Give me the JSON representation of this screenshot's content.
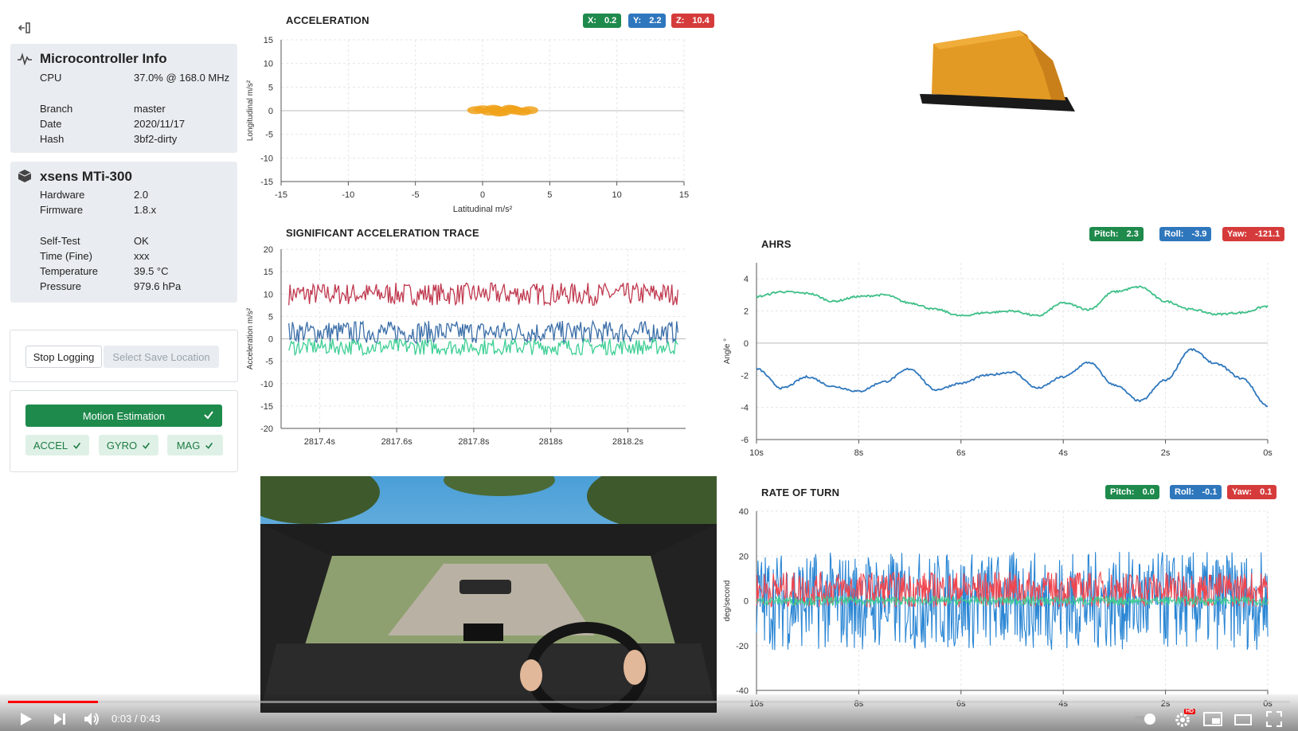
{
  "sidebar": {
    "micro": {
      "title": "Microcontroller Info",
      "rows": [
        {
          "k": "CPU",
          "v": "37.0% @ 168.0 MHz"
        },
        {
          "k": "Branch",
          "v": "master"
        },
        {
          "k": "Date",
          "v": "2020/11/17"
        },
        {
          "k": "Hash",
          "v": "3bf2-dirty"
        }
      ]
    },
    "sensor": {
      "title": "xsens MTi-300",
      "rows": [
        {
          "k": "Hardware",
          "v": "2.0"
        },
        {
          "k": "Firmware",
          "v": "1.8.x"
        },
        {
          "k": "Self-Test",
          "v": "OK"
        },
        {
          "k": "Time (Fine)",
          "v": "xxx"
        },
        {
          "k": "Temperature",
          "v": "39.5 °C"
        },
        {
          "k": "Pressure",
          "v": "979.6 hPa"
        }
      ]
    },
    "logging": {
      "stop_label": "Stop Logging",
      "save_label": "Select Save Location"
    },
    "motion": {
      "label": "Motion Estimation",
      "chips": [
        "ACCEL",
        "GYRO",
        "MAG"
      ]
    }
  },
  "acceleration": {
    "title": "ACCELERATION",
    "badges": [
      {
        "label": "X:",
        "value": "0.2",
        "color": "#1e8a4c"
      },
      {
        "label": "Y:",
        "value": "2.2",
        "color": "#2f77bd"
      },
      {
        "label": "Z:",
        "value": "10.4",
        "color": "#d63b3b"
      }
    ]
  },
  "trace": {
    "title": "SIGNIFICANT ACCELERATION TRACE"
  },
  "ahrs": {
    "title": "AHRS",
    "badges": [
      {
        "label": "Pitch:",
        "value": "2.3",
        "color": "#1e8a4c"
      },
      {
        "label": "Roll:",
        "value": "-3.9",
        "color": "#2f77bd"
      },
      {
        "label": "Yaw:",
        "value": "-121.1",
        "color": "#d63b3b"
      }
    ]
  },
  "rate": {
    "title": "RATE OF TURN",
    "badges": [
      {
        "label": "Pitch:",
        "value": "0.0",
        "color": "#1e8a4c"
      },
      {
        "label": "Roll:",
        "value": "-0.1",
        "color": "#2f77bd"
      },
      {
        "label": "Yaw:",
        "value": "0.1",
        "color": "#d63b3b"
      }
    ]
  },
  "player": {
    "time": "0:03 / 0:43",
    "progress": 0.07,
    "hd": "HD"
  },
  "chart_data": [
    {
      "type": "scatter",
      "title": "ACCELERATION",
      "xlabel": "Latitudinal m/s²",
      "ylabel": "Longitudinal m/s²",
      "xlim": [
        -15,
        15
      ],
      "ylim": [
        -15,
        15
      ],
      "xticks": [
        "-15",
        "-10",
        "-5",
        "0",
        "5",
        "10",
        "15"
      ],
      "yticks": [
        "15",
        "10",
        "5",
        "0",
        "-5",
        "-10",
        "-15"
      ],
      "points": [
        [
          -0.5,
          0.1
        ],
        [
          0,
          0.3
        ],
        [
          0.5,
          -0.2
        ],
        [
          1,
          0.2
        ],
        [
          1.5,
          -0.3
        ],
        [
          2,
          0.4
        ],
        [
          2.5,
          0.0
        ],
        [
          3,
          -0.2
        ],
        [
          3.5,
          0.1
        ],
        [
          1.2,
          -0.4
        ],
        [
          2.2,
          0.3
        ],
        [
          0.8,
          0.4
        ]
      ],
      "color": "#f0a21a"
    },
    {
      "type": "line",
      "title": "SIGNIFICANT ACCELERATION TRACE",
      "ylabel": "Acceleration m/s²",
      "xlim": [
        2817.3,
        2818.35
      ],
      "ylim": [
        -20,
        20
      ],
      "xticks": [
        {
          "v": 2817.4,
          "label": "2817.4s"
        },
        {
          "v": 2817.6,
          "label": "2817.6s"
        },
        {
          "v": 2817.8,
          "label": "2817.8s"
        },
        {
          "v": 2818.0,
          "label": "2818s"
        },
        {
          "v": 2818.2,
          "label": "2818.2s"
        }
      ],
      "yticks": [
        20,
        15,
        10,
        5,
        0,
        -5,
        -10,
        -15,
        -20
      ],
      "series": [
        {
          "color": "#c0394f",
          "mean": 10,
          "amp": 2.5
        },
        {
          "color": "#3c6fa8",
          "mean": 1.5,
          "amp": 2.5
        },
        {
          "color": "#3fcf95",
          "mean": -1.8,
          "amp": 1.8
        }
      ]
    },
    {
      "type": "line",
      "title": "AHRS",
      "ylabel": "Angle °",
      "xlim": [
        10,
        0
      ],
      "ylim": [
        -6,
        5
      ],
      "xticks": [
        {
          "v": 10,
          "label": "10s"
        },
        {
          "v": 8,
          "label": "8s"
        },
        {
          "v": 6,
          "label": "6s"
        },
        {
          "v": 4,
          "label": "4s"
        },
        {
          "v": 2,
          "label": "2s"
        },
        {
          "v": 0,
          "label": "0s"
        }
      ],
      "yticks": [
        4,
        2,
        0,
        -2,
        -4,
        -6
      ],
      "series": [
        {
          "name": "",
          "color": "#3fbf88",
          "x": [
            10,
            9.5,
            9,
            8.5,
            8,
            7.5,
            7,
            6.5,
            6,
            5.5,
            5,
            4.5,
            4,
            3.5,
            3,
            2.5,
            2,
            1.5,
            1,
            0.5,
            0
          ],
          "y": [
            2.9,
            3.2,
            3.1,
            2.6,
            2.9,
            3.0,
            2.5,
            2.1,
            1.7,
            1.9,
            2.0,
            1.7,
            2.5,
            2.1,
            3.2,
            3.5,
            2.6,
            2.1,
            1.8,
            1.9,
            2.3
          ]
        },
        {
          "name": "",
          "color": "#2f77bd",
          "x": [
            10,
            9.5,
            9,
            8.5,
            8,
            7.5,
            7,
            6.5,
            6,
            5.5,
            5,
            4.5,
            4,
            3.5,
            3,
            2.5,
            2,
            1.5,
            1,
            0.5,
            0
          ],
          "y": [
            -1.6,
            -2.8,
            -2.1,
            -2.7,
            -3.0,
            -2.4,
            -1.6,
            -2.9,
            -2.5,
            -2.0,
            -1.8,
            -2.8,
            -2.1,
            -1.2,
            -2.6,
            -3.6,
            -2.3,
            -0.4,
            -1.3,
            -2.2,
            -3.9
          ]
        }
      ]
    },
    {
      "type": "line",
      "title": "RATE OF TURN",
      "ylabel": "deg/second",
      "xlim": [
        10,
        0
      ],
      "ylim": [
        -40,
        40
      ],
      "xticks": [
        {
          "v": 10,
          "label": "10s"
        },
        {
          "v": 8,
          "label": "8s"
        },
        {
          "v": 6,
          "label": "6s"
        },
        {
          "v": 4,
          "label": "4s"
        },
        {
          "v": 2,
          "label": "2s"
        },
        {
          "v": 0,
          "label": "0s"
        }
      ],
      "yticks": [
        40,
        20,
        0,
        -20,
        -40
      ],
      "series": [
        {
          "color": "#2a86d4",
          "mean": 0,
          "amp": 22
        },
        {
          "color": "#f0454e",
          "mean": 5,
          "amp": 8
        },
        {
          "color": "#3fcf95",
          "mean": 0,
          "amp": 2
        }
      ]
    }
  ]
}
